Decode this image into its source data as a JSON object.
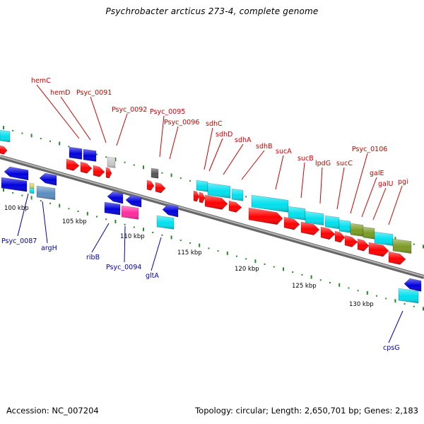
{
  "title": "Psychrobacter arcticus 273-4, complete genome",
  "colors": {
    "backbone": "#8a8a8a",
    "tick": "#2a8a2a",
    "label_top": "#cc0000",
    "label_bottom": "#0000aa",
    "red": "#ff0000",
    "blue": "#0000dd",
    "cyan": "#00e0ee",
    "olive": "#7a9a22",
    "steel": "#5a8fc0",
    "magenta": "#ff2aa0",
    "gray": "#555555",
    "lightgray": "#c8c8c8",
    "yellow": "#d8d860"
  },
  "scale_labels": [
    "100 kbp",
    "105 kbp",
    "110 kbp",
    "115 kbp",
    "120 kbp",
    "125 kbp",
    "130 kbp"
  ],
  "gene_labels_top": [
    "hemC",
    "hemD",
    "Psyc_0091",
    "Psyc_0092",
    "Psyc_0095",
    "Psyc_0096",
    "sdhC",
    "sdhD",
    "sdhA",
    "sdhB",
    "sucA",
    "sucB",
    "lpdG",
    "sucC",
    "Psyc_0106",
    "galE",
    "galU",
    "pgi"
  ],
  "gene_labels_bottom": [
    "Psyc_0087",
    "argH",
    "ribB",
    "Psyc_0094",
    "gltA",
    "cpsG"
  ],
  "footer": {
    "accession": "Accession: NC_007204",
    "summary": "Topology: circular; Length: 2,650,701 bp; Genes: 2,183"
  }
}
